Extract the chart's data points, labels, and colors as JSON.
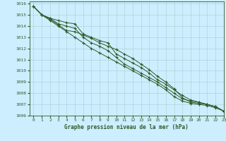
{
  "title": "Graphe pression niveau de la mer (hPa)",
  "xlim": [
    -0.5,
    23
  ],
  "ylim": [
    1006,
    1016.2
  ],
  "xticks": [
    0,
    1,
    2,
    3,
    4,
    5,
    6,
    7,
    8,
    9,
    10,
    11,
    12,
    13,
    14,
    15,
    16,
    17,
    18,
    19,
    20,
    21,
    22,
    23
  ],
  "yticks": [
    1006,
    1007,
    1008,
    1009,
    1010,
    1011,
    1012,
    1013,
    1014,
    1015,
    1016
  ],
  "bg_color": "#cceeff",
  "grid_color": "#aacccc",
  "line_color": "#2d5a27",
  "lines": [
    [
      1015.75,
      1015.0,
      1014.7,
      1014.5,
      1014.3,
      1014.2,
      1013.3,
      1013.0,
      1012.7,
      1012.5,
      1011.5,
      1011.1,
      1010.7,
      1010.3,
      1009.8,
      1009.2,
      1008.8,
      1008.3,
      1007.8,
      1007.4,
      1007.2,
      1007.0,
      1006.8,
      1006.4
    ],
    [
      1015.75,
      1015.0,
      1014.7,
      1014.2,
      1014.0,
      1013.8,
      1013.0,
      1012.5,
      1012.2,
      1011.8,
      1011.2,
      1010.6,
      1010.2,
      1009.8,
      1009.4,
      1009.0,
      1008.5,
      1008.0,
      1007.5,
      1007.3,
      1007.2,
      1007.0,
      1006.8,
      1006.4
    ],
    [
      1015.75,
      1015.0,
      1014.6,
      1014.1,
      1013.6,
      1013.5,
      1013.2,
      1012.9,
      1012.5,
      1012.2,
      1011.9,
      1011.5,
      1011.1,
      1010.6,
      1010.1,
      1009.5,
      1009.0,
      1008.4,
      1007.6,
      1007.2,
      1007.1,
      1007.0,
      1006.8,
      1006.4
    ],
    [
      1015.75,
      1015.0,
      1014.5,
      1014.0,
      1013.5,
      1013.0,
      1012.5,
      1012.0,
      1011.6,
      1011.2,
      1010.8,
      1010.4,
      1010.0,
      1009.6,
      1009.2,
      1008.8,
      1008.3,
      1007.7,
      1007.3,
      1007.1,
      1007.0,
      1006.9,
      1006.7,
      1006.4
    ]
  ]
}
